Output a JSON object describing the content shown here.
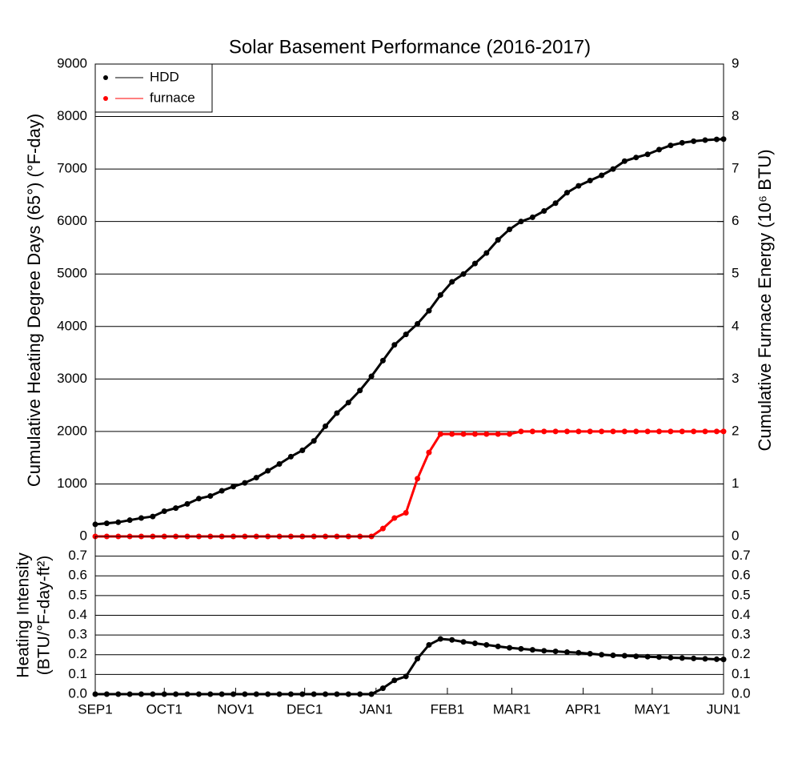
{
  "chart_data": [
    {
      "type": "line",
      "title": "Solar Basement Performance (2016-2017)",
      "ylabel": "Cumulative Heating Degree Days (65°) (°F-day)",
      "y2label": "Cumulative Furnace Energy (10⁶ BTU)",
      "x": [
        0,
        5,
        10,
        15,
        20,
        25,
        30,
        35,
        40,
        45,
        50,
        55,
        60,
        65,
        70,
        75,
        80,
        85,
        90,
        95,
        100,
        105,
        110,
        115,
        120,
        125,
        130,
        135,
        140,
        145,
        150,
        155,
        160,
        165,
        170,
        175,
        180,
        185,
        190,
        195,
        200,
        205,
        210,
        215,
        220,
        225,
        230,
        235,
        240,
        245,
        250,
        255,
        260,
        265,
        270,
        273
      ],
      "xlim": [
        0,
        273
      ],
      "ylim": [
        0,
        9000
      ],
      "yticks": [
        0,
        1000,
        2000,
        3000,
        4000,
        5000,
        6000,
        7000,
        8000,
        9000
      ],
      "y2lim": [
        0,
        9
      ],
      "y2ticks": [
        0,
        1,
        2,
        3,
        4,
        5,
        6,
        7,
        8,
        9
      ],
      "grid": true,
      "legend": "upper left",
      "series": [
        {
          "name": "HDD",
          "color": "#000000",
          "values": [
            230,
            250,
            270,
            310,
            350,
            380,
            480,
            540,
            620,
            720,
            770,
            870,
            950,
            1020,
            1120,
            1250,
            1380,
            1520,
            1640,
            1820,
            2100,
            2350,
            2550,
            2780,
            3050,
            3350,
            3650,
            3850,
            4050,
            4300,
            4600,
            4850,
            5000,
            5200,
            5400,
            5650,
            5850,
            6000,
            6080,
            6200,
            6350,
            6550,
            6680,
            6780,
            6880,
            7000,
            7150,
            7220,
            7280,
            7370,
            7450,
            7500,
            7530,
            7550,
            7565,
            7570
          ]
        },
        {
          "name": "furnace",
          "color": "#ff0000",
          "axis": "y2",
          "values": [
            0,
            0,
            0,
            0,
            0,
            0,
            0,
            0,
            0,
            0,
            0,
            0,
            0,
            0,
            0,
            0,
            0,
            0,
            0,
            0,
            0,
            0,
            0,
            0,
            0,
            0.15,
            0.35,
            0.45,
            1.1,
            1.6,
            1.95,
            1.95,
            1.95,
            1.95,
            1.95,
            1.95,
            1.95,
            2,
            2,
            2,
            2,
            2,
            2,
            2,
            2,
            2,
            2,
            2,
            2,
            2,
            2,
            2,
            2,
            2,
            2,
            2
          ]
        }
      ]
    },
    {
      "type": "line",
      "ylabel": [
        "Heating Intensity",
        "(BTU/°F-day-ft²)"
      ],
      "x": [
        0,
        5,
        10,
        15,
        20,
        25,
        30,
        35,
        40,
        45,
        50,
        55,
        60,
        65,
        70,
        75,
        80,
        85,
        90,
        95,
        100,
        105,
        110,
        115,
        120,
        125,
        130,
        135,
        140,
        145,
        150,
        155,
        160,
        165,
        170,
        175,
        180,
        185,
        190,
        195,
        200,
        205,
        210,
        215,
        220,
        225,
        230,
        235,
        240,
        245,
        250,
        255,
        260,
        265,
        270,
        273
      ],
      "xlim": [
        0,
        273
      ],
      "xticks": [
        {
          "value": 0,
          "label": "SEP1"
        },
        {
          "value": 30,
          "label": "OCT1"
        },
        {
          "value": 61,
          "label": "NOV1"
        },
        {
          "value": 91,
          "label": "DEC1"
        },
        {
          "value": 122,
          "label": "JAN1"
        },
        {
          "value": 153,
          "label": "FEB1"
        },
        {
          "value": 181,
          "label": "MAR1"
        },
        {
          "value": 212,
          "label": "APR1"
        },
        {
          "value": 242,
          "label": "MAY1"
        },
        {
          "value": 273,
          "label": "JUN1"
        }
      ],
      "ylim": [
        0,
        0.8
      ],
      "yticks": [
        {
          "value": 0,
          "label": "0.0"
        },
        0.1,
        0.2,
        0.3,
        0.4,
        0.5,
        0.6,
        0.7
      ],
      "grid": true,
      "color": "#000000",
      "values": [
        0,
        0,
        0,
        0,
        0,
        0,
        0,
        0,
        0,
        0,
        0,
        0,
        0,
        0,
        0,
        0,
        0,
        0,
        0,
        0,
        0,
        0,
        0,
        0,
        0,
        0.03,
        0.07,
        0.09,
        0.18,
        0.25,
        0.28,
        0.275,
        0.265,
        0.258,
        0.25,
        0.242,
        0.235,
        0.23,
        0.225,
        0.22,
        0.217,
        0.213,
        0.21,
        0.205,
        0.2,
        0.197,
        0.195,
        0.192,
        0.19,
        0.188,
        0.185,
        0.183,
        0.181,
        0.179,
        0.177,
        0.176
      ]
    }
  ]
}
